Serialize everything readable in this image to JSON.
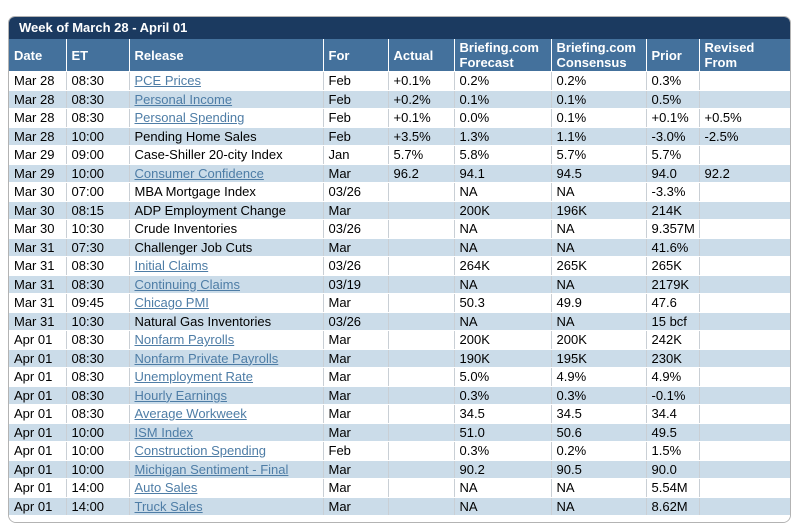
{
  "title_bar": {
    "title": "Week of March 28 - April 01"
  },
  "colors": {
    "title_bar_bg": "#1B3A60",
    "header_bg": "#44719C",
    "stripe_bg": "#CBDCE9",
    "link": "#4E7DA6"
  },
  "table": {
    "columns": [
      {
        "label": "Date"
      },
      {
        "label": "ET"
      },
      {
        "label": "Release"
      },
      {
        "label": "For"
      },
      {
        "label": "Actual"
      },
      {
        "label": "Briefing.com Forecast"
      },
      {
        "label": "Briefing.com Consensus"
      },
      {
        "label": "Prior"
      },
      {
        "label": "Revised From"
      }
    ],
    "rows": [
      {
        "date": "Mar 28",
        "et": "08:30",
        "release": "PCE Prices",
        "is_link": true,
        "for": "Feb",
        "actual": "+0.1%",
        "forecast": "0.2%",
        "consensus": "0.2%",
        "prior": "0.3%",
        "revised_from": ""
      },
      {
        "date": "Mar 28",
        "et": "08:30",
        "release": "Personal Income",
        "is_link": true,
        "for": "Feb",
        "actual": "+0.2%",
        "forecast": "0.1%",
        "consensus": "0.1%",
        "prior": "0.5%",
        "revised_from": ""
      },
      {
        "date": "Mar 28",
        "et": "08:30",
        "release": "Personal Spending",
        "is_link": true,
        "for": "Feb",
        "actual": "+0.1%",
        "forecast": "0.0%",
        "consensus": "0.1%",
        "prior": "+0.1%",
        "revised_from": "+0.5%"
      },
      {
        "date": "Mar 28",
        "et": "10:00",
        "release": "Pending Home Sales",
        "is_link": false,
        "for": "Feb",
        "actual": "+3.5%",
        "forecast": "1.3%",
        "consensus": "1.1%",
        "prior": "-3.0%",
        "revised_from": "-2.5%"
      },
      {
        "date": "Mar 29",
        "et": "09:00",
        "release": "Case-Shiller 20-city Index",
        "is_link": false,
        "for": "Jan",
        "actual": "5.7%",
        "forecast": "5.8%",
        "consensus": "5.7%",
        "prior": "5.7%",
        "revised_from": ""
      },
      {
        "date": "Mar 29",
        "et": "10:00",
        "release": "Consumer Confidence",
        "is_link": true,
        "for": "Mar",
        "actual": "96.2",
        "forecast": "94.1",
        "consensus": "94.5",
        "prior": "94.0",
        "revised_from": "92.2"
      },
      {
        "date": "Mar 30",
        "et": "07:00",
        "release": "MBA Mortgage Index",
        "is_link": false,
        "for": "03/26",
        "actual": "",
        "forecast": "NA",
        "consensus": "NA",
        "prior": "-3.3%",
        "revised_from": ""
      },
      {
        "date": "Mar 30",
        "et": "08:15",
        "release": "ADP Employment Change",
        "is_link": false,
        "for": "Mar",
        "actual": "",
        "forecast": "200K",
        "consensus": "196K",
        "prior": "214K",
        "revised_from": ""
      },
      {
        "date": "Mar 30",
        "et": "10:30",
        "release": "Crude Inventories",
        "is_link": false,
        "for": "03/26",
        "actual": "",
        "forecast": "NA",
        "consensus": "NA",
        "prior": "9.357M",
        "revised_from": ""
      },
      {
        "date": "Mar 31",
        "et": "07:30",
        "release": "Challenger Job Cuts",
        "is_link": false,
        "for": "Mar",
        "actual": "",
        "forecast": "NA",
        "consensus": "NA",
        "prior": "41.6%",
        "revised_from": ""
      },
      {
        "date": "Mar 31",
        "et": "08:30",
        "release": "Initial Claims",
        "is_link": true,
        "for": "03/26",
        "actual": "",
        "forecast": "264K",
        "consensus": "265K",
        "prior": "265K",
        "revised_from": ""
      },
      {
        "date": "Mar 31",
        "et": "08:30",
        "release": "Continuing Claims",
        "is_link": true,
        "for": "03/19",
        "actual": "",
        "forecast": "NA",
        "consensus": "NA",
        "prior": "2179K",
        "revised_from": ""
      },
      {
        "date": "Mar 31",
        "et": "09:45",
        "release": "Chicago PMI",
        "is_link": true,
        "for": "Mar",
        "actual": "",
        "forecast": "50.3",
        "consensus": "49.9",
        "prior": "47.6",
        "revised_from": ""
      },
      {
        "date": "Mar 31",
        "et": "10:30",
        "release": "Natural Gas Inventories",
        "is_link": false,
        "for": "03/26",
        "actual": "",
        "forecast": "NA",
        "consensus": "NA",
        "prior": "15 bcf",
        "revised_from": ""
      },
      {
        "date": "Apr 01",
        "et": "08:30",
        "release": "Nonfarm Payrolls",
        "is_link": true,
        "for": "Mar",
        "actual": "",
        "forecast": "200K",
        "consensus": "200K",
        "prior": "242K",
        "revised_from": ""
      },
      {
        "date": "Apr 01",
        "et": "08:30",
        "release": "Nonfarm Private Payrolls",
        "is_link": true,
        "for": "Mar",
        "actual": "",
        "forecast": "190K",
        "consensus": "195K",
        "prior": "230K",
        "revised_from": ""
      },
      {
        "date": "Apr 01",
        "et": "08:30",
        "release": "Unemployment Rate",
        "is_link": true,
        "for": "Mar",
        "actual": "",
        "forecast": "5.0%",
        "consensus": "4.9%",
        "prior": "4.9%",
        "revised_from": ""
      },
      {
        "date": "Apr 01",
        "et": "08:30",
        "release": "Hourly Earnings",
        "is_link": true,
        "for": "Mar",
        "actual": "",
        "forecast": "0.3%",
        "consensus": "0.3%",
        "prior": "-0.1%",
        "revised_from": ""
      },
      {
        "date": "Apr 01",
        "et": "08:30",
        "release": "Average Workweek",
        "is_link": true,
        "for": "Mar",
        "actual": "",
        "forecast": "34.5",
        "consensus": "34.5",
        "prior": "34.4",
        "revised_from": ""
      },
      {
        "date": "Apr 01",
        "et": "10:00",
        "release": "ISM Index",
        "is_link": true,
        "for": "Mar",
        "actual": "",
        "forecast": "51.0",
        "consensus": "50.6",
        "prior": "49.5",
        "revised_from": ""
      },
      {
        "date": "Apr 01",
        "et": "10:00",
        "release": "Construction Spending",
        "is_link": true,
        "for": "Feb",
        "actual": "",
        "forecast": "0.3%",
        "consensus": "0.2%",
        "prior": "1.5%",
        "revised_from": ""
      },
      {
        "date": "Apr 01",
        "et": "10:00",
        "release": "Michigan Sentiment - Final",
        "is_link": true,
        "for": "Mar",
        "actual": "",
        "forecast": "90.2",
        "consensus": "90.5",
        "prior": "90.0",
        "revised_from": ""
      },
      {
        "date": "Apr 01",
        "et": "14:00",
        "release": "Auto Sales",
        "is_link": true,
        "for": "Mar",
        "actual": "",
        "forecast": "NA",
        "consensus": "NA",
        "prior": "5.54M",
        "revised_from": ""
      },
      {
        "date": "Apr 01",
        "et": "14:00",
        "release": "Truck Sales",
        "is_link": true,
        "for": "Mar",
        "actual": "",
        "forecast": "NA",
        "consensus": "NA",
        "prior": "8.62M",
        "revised_from": ""
      }
    ]
  }
}
